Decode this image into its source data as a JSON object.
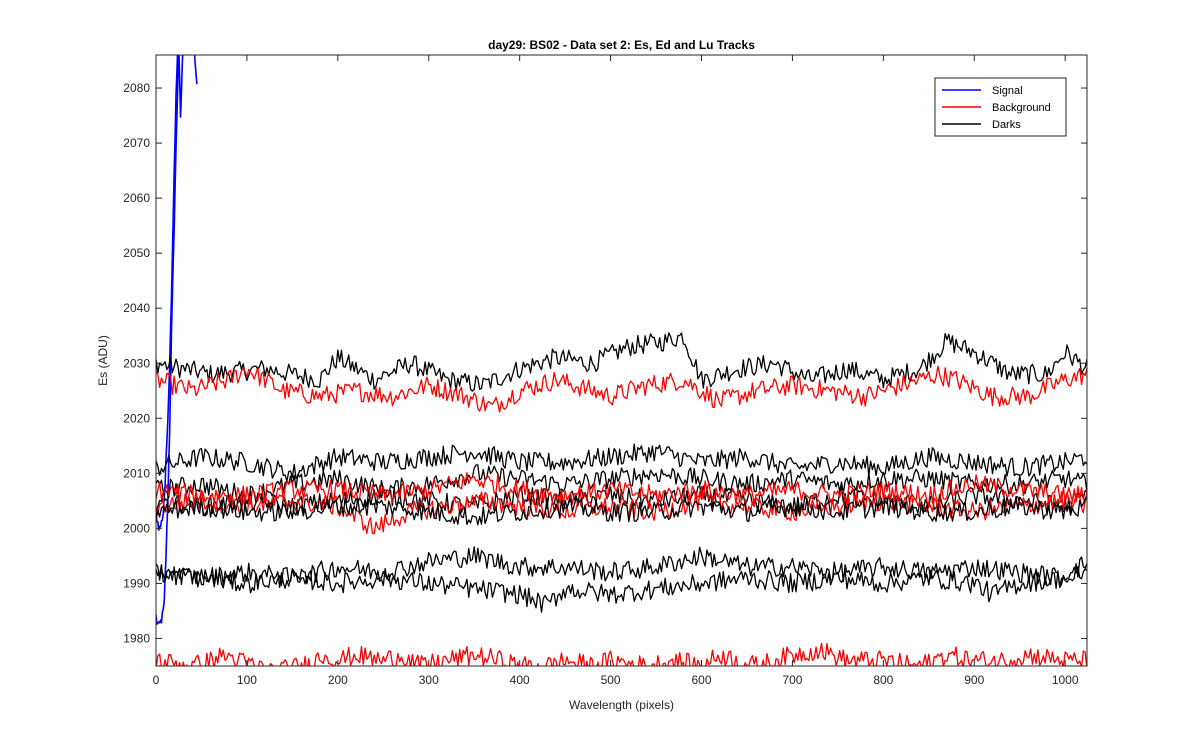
{
  "chart_data": {
    "type": "line",
    "title": "day29: BS02 - Data set 2: Es, Ed and Lu Tracks",
    "xlabel": "Wavelength (pixels)",
    "ylabel": "Es (ADU)",
    "xlim": [
      0,
      1024
    ],
    "ylim": [
      1975,
      2086
    ],
    "xticks": [
      "0",
      "100",
      "200",
      "300",
      "400",
      "500",
      "600",
      "700",
      "800",
      "900",
      "1000"
    ],
    "yticks": [
      "1980",
      "1990",
      "2000",
      "2010",
      "2020",
      "2030",
      "2040",
      "2050",
      "2060",
      "2070",
      "2080"
    ],
    "grid": false,
    "legend_position": "top-right",
    "legend": [
      {
        "label": "Signal",
        "color": "#0000ff"
      },
      {
        "label": "Background",
        "color": "#ff0000"
      },
      {
        "label": "Darks",
        "color": "#000000"
      }
    ],
    "series": [
      {
        "name": "Signal",
        "color": "#0000ff",
        "x": [
          0,
          1,
          3,
          5,
          7,
          9,
          11,
          13,
          15,
          17,
          19,
          21,
          23,
          25,
          27,
          29,
          31,
          33,
          35,
          38,
          41,
          45
        ],
        "y": [
          1984,
          1983,
          1982,
          1983,
          1984,
          1986,
          1995,
          2005,
          2018,
          2035,
          2048,
          2062,
          2075,
          2088,
          2074,
          2085,
          2090,
          2089,
          2092,
          2095,
          2090,
          2080
        ]
      },
      {
        "name": "Signal",
        "color": "#0000ff",
        "x": [
          0,
          2,
          4,
          6,
          8,
          10,
          12,
          14,
          16,
          18,
          20,
          22,
          24,
          26
        ],
        "y": [
          2003,
          2001,
          2000,
          2001,
          2003,
          2008,
          2016,
          2025,
          2036,
          2050,
          2065,
          2078,
          2088,
          2095
        ]
      },
      {
        "name": "Darks",
        "color": "#000000",
        "x": [
          0,
          60,
          120,
          180,
          200,
          240,
          280,
          320,
          360,
          400,
          440,
          480,
          520,
          560,
          580,
          600,
          640,
          680,
          720,
          760,
          800,
          840,
          870,
          900,
          940,
          980,
          1000,
          1024
        ],
        "y": [
          2030,
          2028,
          2029,
          2027,
          2031,
          2027,
          2030,
          2027,
          2026,
          2029,
          2031,
          2030,
          2033,
          2034,
          2035,
          2027,
          2029,
          2030,
          2027,
          2029,
          2027,
          2029,
          2034,
          2032,
          2028,
          2028,
          2032,
          2029
        ]
      },
      {
        "name": "Background",
        "color": "#ff0000",
        "x": [
          0,
          40,
          80,
          100,
          140,
          180,
          220,
          260,
          300,
          340,
          370,
          400,
          440,
          480,
          500,
          540,
          580,
          620,
          660,
          700,
          740,
          780,
          820,
          860,
          880,
          920,
          960,
          1000,
          1024
        ],
        "y": [
          2027,
          2025,
          2027,
          2029,
          2025,
          2024,
          2025,
          2024,
          2026,
          2024,
          2022,
          2025,
          2027,
          2025,
          2024,
          2026,
          2027,
          2023,
          2025,
          2026,
          2025,
          2024,
          2026,
          2028,
          2027,
          2024,
          2024,
          2027,
          2028
        ]
      },
      {
        "name": "Darks",
        "color": "#000000",
        "x": [
          0,
          50,
          100,
          150,
          200,
          250,
          300,
          350,
          400,
          450,
          500,
          550,
          600,
          650,
          700,
          750,
          800,
          850,
          900,
          950,
          1000,
          1024
        ],
        "y": [
          2011,
          2013,
          2012,
          2010,
          2013,
          2012,
          2013,
          2014,
          2012,
          2012,
          2013,
          2014,
          2012,
          2013,
          2011,
          2012,
          2011,
          2013,
          2012,
          2011,
          2012,
          2013
        ]
      },
      {
        "name": "Darks",
        "color": "#000000",
        "x": [
          0,
          50,
          100,
          150,
          200,
          250,
          300,
          350,
          400,
          450,
          500,
          550,
          600,
          650,
          700,
          750,
          800,
          850,
          900,
          950,
          1000,
          1024
        ],
        "y": [
          2007,
          2008,
          2006,
          2008,
          2009,
          2007,
          2008,
          2010,
          2009,
          2008,
          2009,
          2010,
          2009,
          2008,
          2009,
          2008,
          2009,
          2009,
          2008,
          2008,
          2009,
          2008
        ]
      },
      {
        "name": "Darks",
        "color": "#000000",
        "x": [
          0,
          50,
          100,
          150,
          200,
          250,
          300,
          350,
          400,
          450,
          500,
          550,
          600,
          650,
          700,
          750,
          800,
          850,
          900,
          950,
          1000,
          1024
        ],
        "y": [
          2005,
          2004,
          2005,
          2004,
          2005,
          2006,
          2005,
          2004,
          2006,
          2005,
          2006,
          2005,
          2006,
          2005,
          2004,
          2006,
          2005,
          2004,
          2006,
          2005,
          2004,
          2006
        ]
      },
      {
        "name": "Background",
        "color": "#ff0000",
        "x": [
          0,
          50,
          100,
          150,
          200,
          250,
          300,
          350,
          400,
          450,
          500,
          550,
          600,
          650,
          700,
          750,
          800,
          850,
          900,
          950,
          1000,
          1024
        ],
        "y": [
          2007,
          2006,
          2006,
          2007,
          2007,
          2006,
          2007,
          2009,
          2007,
          2006,
          2007,
          2006,
          2007,
          2006,
          2007,
          2006,
          2007,
          2006,
          2008,
          2007,
          2006,
          2006
        ]
      },
      {
        "name": "Background",
        "color": "#ff0000",
        "x": [
          0,
          50,
          100,
          150,
          200,
          240,
          280,
          320,
          360,
          400,
          450,
          500,
          550,
          600,
          650,
          700,
          750,
          800,
          850,
          900,
          950,
          1000,
          1024
        ],
        "y": [
          2004,
          2005,
          2004,
          2005,
          2004,
          2000,
          2003,
          2004,
          2005,
          2004,
          2003,
          2004,
          2003,
          2005,
          2004,
          2003,
          2004,
          2005,
          2004,
          2003,
          2004,
          2005,
          2004
        ]
      },
      {
        "name": "Darks",
        "color": "#000000",
        "x": [
          0,
          50,
          100,
          150,
          200,
          250,
          300,
          350,
          400,
          450,
          500,
          550,
          600,
          650,
          700,
          750,
          800,
          850,
          900,
          950,
          1000,
          1024
        ],
        "y": [
          2003,
          2004,
          2003,
          2003,
          2004,
          2004,
          2003,
          2002,
          2003,
          2004,
          2003,
          2003,
          2004,
          2003,
          2004,
          2003,
          2004,
          2003,
          2003,
          2004,
          2003,
          2004
        ]
      },
      {
        "name": "Darks",
        "color": "#000000",
        "x": [
          0,
          50,
          100,
          150,
          200,
          250,
          300,
          350,
          400,
          450,
          500,
          550,
          600,
          650,
          700,
          750,
          800,
          850,
          900,
          950,
          1000,
          1024
        ],
        "y": [
          1992,
          1991,
          1992,
          1991,
          1993,
          1992,
          1994,
          1995,
          1993,
          1993,
          1992,
          1993,
          1995,
          1993,
          1993,
          1992,
          1993,
          1992,
          1993,
          1992,
          1991,
          1994
        ]
      },
      {
        "name": "Darks",
        "color": "#000000",
        "x": [
          0,
          50,
          100,
          150,
          200,
          250,
          300,
          350,
          400,
          430,
          450,
          500,
          550,
          600,
          650,
          700,
          750,
          800,
          850,
          900,
          920,
          950,
          1000,
          1024
        ],
        "y": [
          1992,
          1991,
          1990,
          1991,
          1990,
          1991,
          1990,
          1989,
          1988,
          1986,
          1989,
          1988,
          1989,
          1990,
          1991,
          1990,
          1991,
          1990,
          1991,
          1990,
          1988,
          1990,
          1991,
          1992
        ]
      },
      {
        "name": "Background",
        "color": "#ff0000",
        "x": [
          0,
          40,
          60,
          75,
          90,
          110,
          130,
          160,
          175,
          185,
          200,
          220,
          250,
          270,
          290,
          320,
          350,
          380,
          400,
          430,
          450,
          480,
          500,
          540,
          570,
          600,
          620,
          640,
          660,
          700,
          730,
          760,
          800,
          840,
          870,
          900,
          930,
          960,
          1000,
          1024
        ],
        "y": [
          1976,
          1975,
          1976,
          1977,
          1976,
          1975,
          1974,
          1975,
          1976,
          1977,
          1976,
          1977,
          1976,
          1977,
          1975,
          1976,
          1977,
          1976,
          1975,
          1975,
          1976,
          1975,
          1976,
          1975,
          1976,
          1975,
          1977,
          1976,
          1975,
          1977,
          1978,
          1976,
          1976,
          1975,
          1977,
          1976,
          1976,
          1977,
          1976,
          1976
        ]
      }
    ]
  }
}
